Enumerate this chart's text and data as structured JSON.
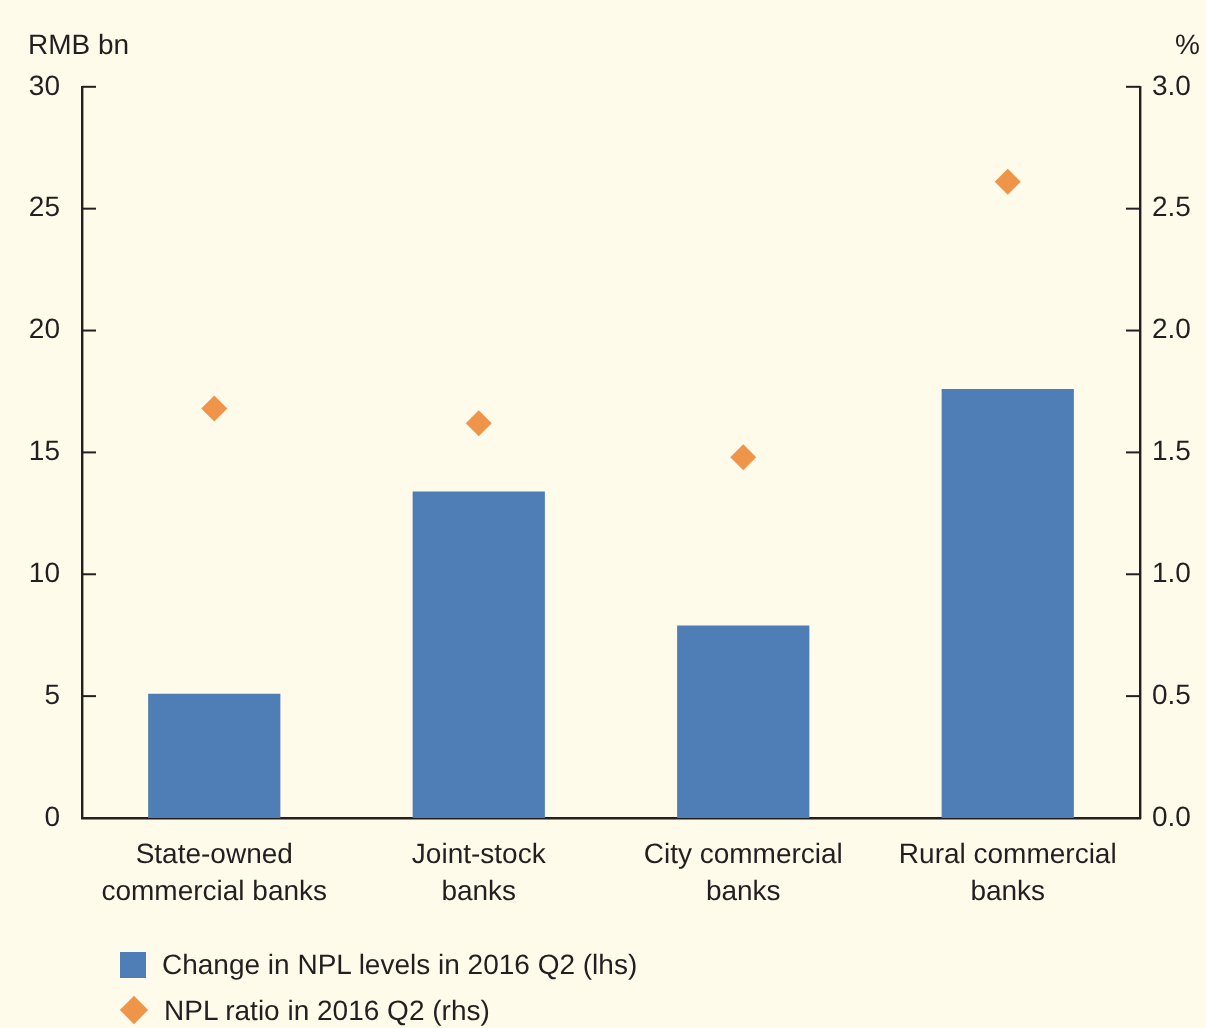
{
  "chart_data": {
    "type": "bar",
    "ylabel": "RMB bn",
    "y2label": "%",
    "categories": [
      "State-owned commercial banks",
      "Joint-stock banks",
      "City commercial banks",
      "Rural commercial banks"
    ],
    "series": [
      {
        "name": "Change in NPL levels in 2016 Q2 (lhs)",
        "color": "#4f7db5",
        "values": [
          5.1,
          13.4,
          7.9,
          17.6
        ]
      },
      {
        "name": "NPL ratio in 2016 Q2 (rhs)",
        "type": "scatter",
        "axis": "y2",
        "marker": "diamond",
        "color": "#ef9549",
        "values": [
          1.68,
          1.62,
          1.48,
          2.61
        ]
      }
    ],
    "ylim": [
      0,
      30
    ],
    "yticks": [
      0,
      5,
      10,
      15,
      20,
      25,
      30
    ],
    "y2lim": [
      0,
      3
    ],
    "y2ticks": [
      {
        "value": 0,
        "label": "0.0"
      },
      0.5,
      {
        "value": 1,
        "label": "1.0"
      },
      1.5,
      {
        "value": 2,
        "label": "2.0"
      },
      2.5,
      {
        "value": 3,
        "label": "3.0"
      }
    ],
    "legend": "bottom"
  }
}
